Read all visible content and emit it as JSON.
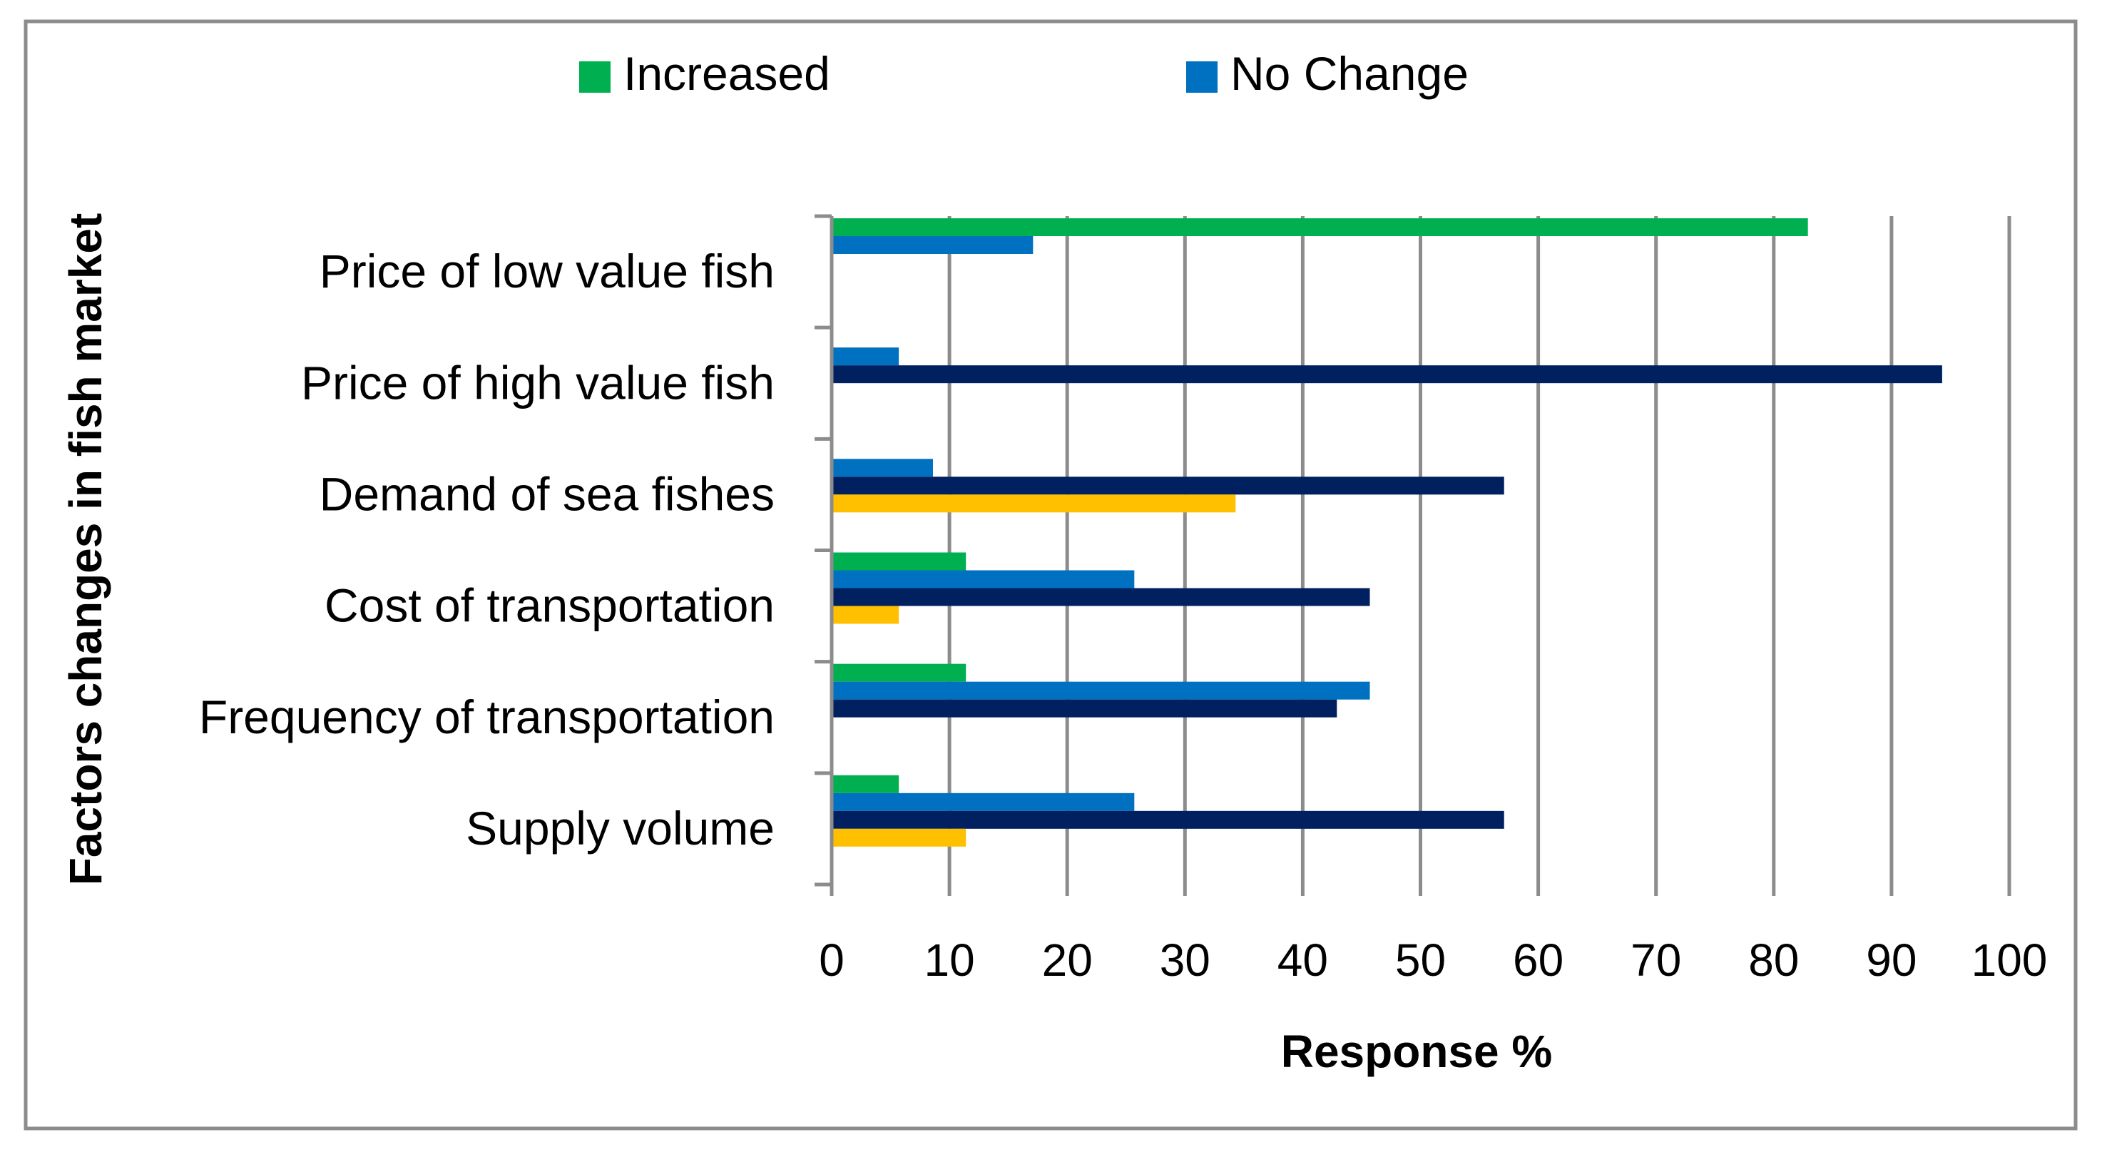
{
  "chart_data": {
    "type": "bar",
    "orientation": "horizontal",
    "xlabel": "Response %",
    "ylabel": "Factors changes in fish market",
    "xlim": [
      0,
      100
    ],
    "x_ticks": [
      0,
      10,
      20,
      30,
      40,
      50,
      60,
      70,
      80,
      90,
      100
    ],
    "grid": true,
    "legend_position": "top",
    "categories": [
      "Price of low value fish",
      "Price of high value fish",
      "Demand of sea fishes",
      "Cost of transportation",
      "Frequency of transportation",
      "Supply volume"
    ],
    "series": [
      {
        "name": "Increased",
        "color": "#00B050",
        "values": [
          82.9,
          0,
          0,
          11.4,
          11.4,
          5.7
        ]
      },
      {
        "name": "No Change",
        "color": "#0070C0",
        "values": [
          17.1,
          5.7,
          8.6,
          25.7,
          45.7,
          25.7
        ]
      },
      {
        "color": "#002060",
        "values": [
          0,
          94.3,
          57.1,
          45.7,
          42.9,
          57.1
        ]
      },
      {
        "color": "#FFC000",
        "values": [
          0,
          0,
          34.3,
          5.7,
          0,
          11.4
        ]
      }
    ]
  }
}
